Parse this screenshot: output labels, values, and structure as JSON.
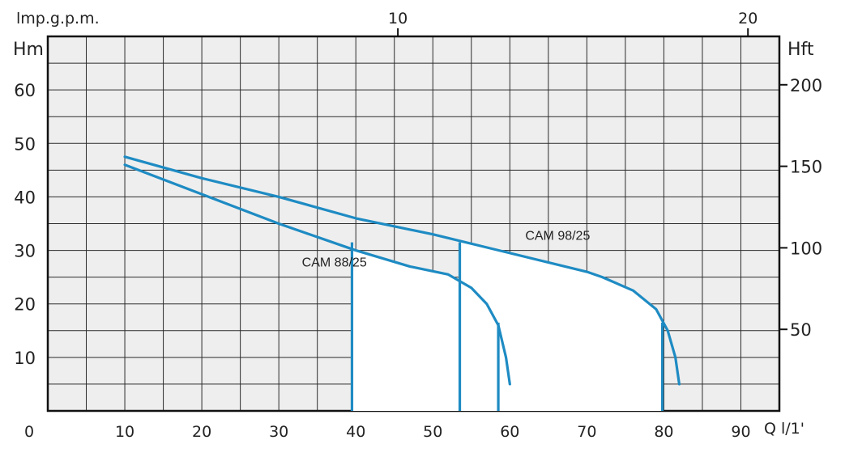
{
  "chart_data": {
    "type": "line",
    "title": "",
    "x_label": "Q l/1'",
    "y_left_label": "Hm",
    "y_right_label": "Hft",
    "top_axis_label": "lmp.g.p.m.",
    "x_range": [
      0,
      95
    ],
    "y_range": [
      0,
      70
    ],
    "x_ticks": [
      0,
      10,
      20,
      30,
      40,
      50,
      60,
      70,
      80,
      90
    ],
    "x_tick_labels": [
      "0",
      "10",
      "20",
      "30",
      "40",
      "50",
      "60",
      "70",
      "80",
      "90"
    ],
    "y_ticks": [
      10,
      20,
      30,
      40,
      50,
      60
    ],
    "y_tick_labels": [
      "10",
      "20",
      "30",
      "40",
      "50",
      "60"
    ],
    "right_ticks": [
      {
        "label": "50",
        "h_m": 15.24
      },
      {
        "label": "100",
        "h_m": 30.48
      },
      {
        "label": "150",
        "h_m": 45.72
      },
      {
        "label": "200",
        "h_m": 60.96
      }
    ],
    "top_ticks": [
      {
        "label": "10",
        "q_lpm": 45.46
      },
      {
        "label": "20",
        "q_lpm": 90.92
      }
    ],
    "grid": true,
    "line_color": "#1e8bc3",
    "series": [
      {
        "name": "CAM 88/25",
        "curve": [
          [
            10,
            46
          ],
          [
            20,
            40.5
          ],
          [
            30,
            35
          ],
          [
            40,
            30
          ],
          [
            47,
            27
          ],
          [
            52,
            25.5
          ],
          [
            55,
            23
          ],
          [
            57,
            20
          ],
          [
            58.5,
            16
          ],
          [
            59.5,
            10
          ],
          [
            60,
            5
          ]
        ],
        "range_markers": [
          {
            "q": 39.5,
            "h": 31.5
          },
          {
            "q": 58.5,
            "h": 16.5
          }
        ],
        "label_position": {
          "q": 33,
          "h": 27
        }
      },
      {
        "name": "CAM 98/25",
        "curve": [
          [
            10,
            47.5
          ],
          [
            20,
            43.5
          ],
          [
            30,
            40
          ],
          [
            40,
            36
          ],
          [
            50,
            33
          ],
          [
            60,
            29.5
          ],
          [
            70,
            26
          ],
          [
            72,
            25
          ],
          [
            76,
            22.5
          ],
          [
            79,
            19
          ],
          [
            80.5,
            15
          ],
          [
            81.5,
            10
          ],
          [
            82,
            5
          ]
        ],
        "range_markers": [
          {
            "q": 53.5,
            "h": 31.5
          },
          {
            "q": 79.8,
            "h": 16.5
          }
        ],
        "label_position": {
          "q": 62,
          "h": 32
        }
      }
    ]
  }
}
